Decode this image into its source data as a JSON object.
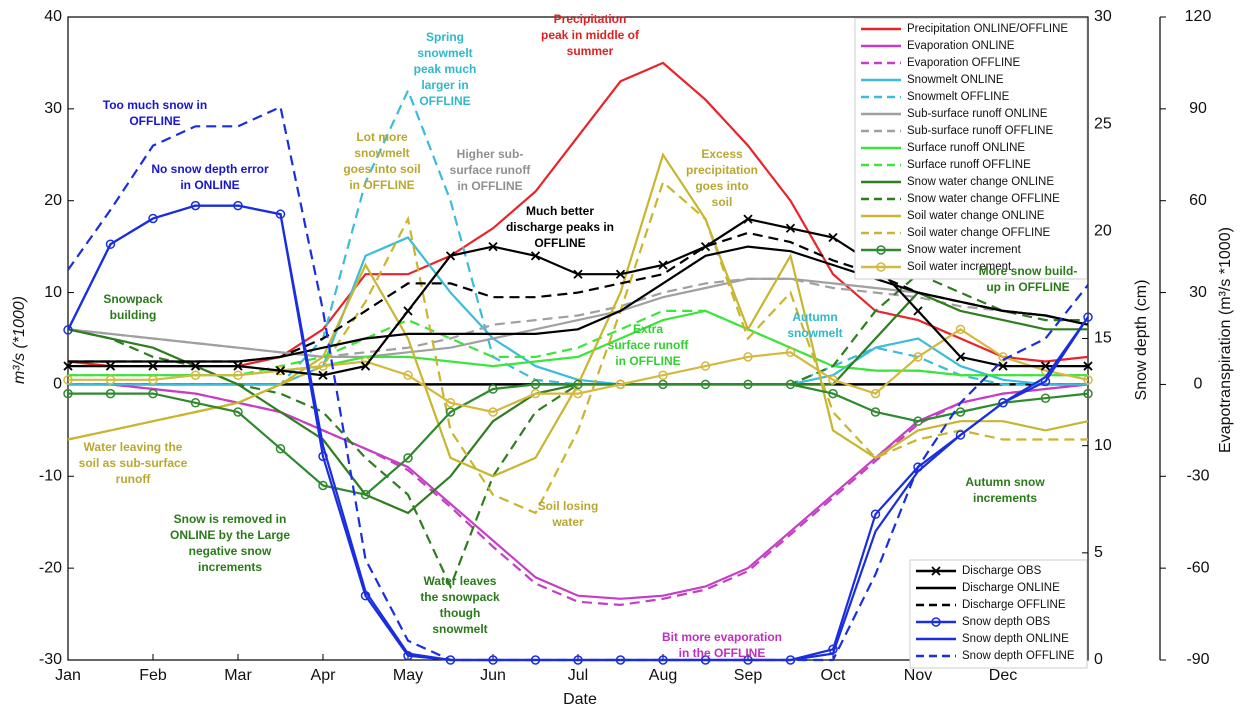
{
  "chart_data": {
    "type": "line",
    "x_label": "Date",
    "y_label": "m³/s (*1000)",
    "y2_label": "Snow depth (cm)",
    "y3_label": "Evapotranspiration (m³/s *1000)",
    "categories": [
      "Jan",
      null,
      "Feb",
      null,
      "Mar",
      null,
      "Apr",
      null,
      "May",
      null,
      "Jun",
      null,
      "Jul",
      null,
      "Aug",
      null,
      "Sep",
      null,
      "Oct",
      null,
      "Nov",
      null,
      "Dec",
      null,
      null
    ],
    "ylim": [
      -30,
      40
    ],
    "yticks": [
      -30,
      -20,
      -10,
      0,
      10,
      20,
      30,
      40
    ],
    "y2lim": [
      0,
      30
    ],
    "y2ticks": [
      0,
      5,
      10,
      15,
      20,
      25,
      30
    ],
    "y3lim": [
      -90,
      120
    ],
    "y3ticks": [
      -90,
      -60,
      -30,
      0,
      30,
      60,
      90,
      120
    ],
    "zero_line": true,
    "series": [
      {
        "name": "Precipitation ONLINE/OFFLINE",
        "color": "#e8232a",
        "dash": false,
        "legend": "upper right",
        "values": [
          2.5,
          2,
          2,
          2,
          2,
          3,
          6,
          12,
          12,
          14,
          17,
          21,
          27,
          33,
          35,
          31,
          26,
          20,
          12,
          8,
          7,
          5,
          3,
          2.5,
          3
        ]
      },
      {
        "name": "Evaporation ONLINE",
        "color": "#c53ec5",
        "dash": false,
        "axis": "y3",
        "legend": "upper right",
        "values": [
          0,
          0,
          -1.5,
          -3,
          -6,
          -9,
          -15,
          -21,
          -27,
          -39,
          -51,
          -63,
          -69,
          -70,
          -69,
          -66,
          -60,
          -48,
          -36,
          -24,
          -12,
          -6,
          -3,
          -1.5,
          0
        ]
      },
      {
        "name": "Evaporation OFFLINE",
        "color": "#c53ec5",
        "dash": true,
        "axis": "y3",
        "legend": "upper right",
        "values": [
          0,
          0,
          -1.5,
          -3,
          -6,
          -9,
          -15,
          -21,
          -28,
          -40,
          -53,
          -65,
          -71,
          -72,
          -70,
          -67,
          -61,
          -49,
          -37,
          -25,
          -13,
          -6,
          -3,
          -1.5,
          0
        ]
      },
      {
        "name": "Snowmelt ONLINE",
        "color": "#3bbcd8",
        "dash": false,
        "legend": "upper right",
        "values": [
          0,
          0,
          0,
          0,
          0,
          0,
          2,
          14,
          16,
          10,
          5,
          2,
          0.5,
          0,
          0,
          0,
          0,
          0,
          1,
          4,
          5,
          2,
          0.5,
          0,
          0
        ]
      },
      {
        "name": "Snowmelt OFFLINE",
        "color": "#3bbcd8",
        "dash": true,
        "legend": "upper right",
        "values": [
          0,
          0,
          0,
          0,
          0,
          0,
          5,
          22,
          32,
          20,
          3,
          0.5,
          0,
          0,
          0,
          0,
          0,
          0,
          2,
          4,
          3,
          1,
          0,
          0,
          0
        ]
      },
      {
        "name": "Sub-surface runoff ONLINE",
        "color": "#a0a0a0",
        "dash": false,
        "legend": "upper right",
        "values": [
          6,
          5.5,
          5,
          4.5,
          4,
          3.5,
          3,
          3,
          3.5,
          4,
          5,
          6,
          7,
          8,
          9.5,
          10.5,
          11.5,
          11.5,
          11,
          10.5,
          10,
          9,
          8,
          7.5,
          6.5
        ]
      },
      {
        "name": "Sub-surface runoff OFFLINE",
        "color": "#a0a0a0",
        "dash": true,
        "legend": "upper right",
        "values": [
          6,
          5.5,
          5,
          4.5,
          4,
          3.5,
          3,
          3.5,
          4,
          5,
          6.5,
          7,
          7.5,
          8.5,
          10,
          11,
          11.5,
          11.5,
          10.5,
          10,
          9.5,
          8.5,
          8,
          7.5,
          6.5
        ]
      },
      {
        "name": "Surface runoff ONLINE",
        "color": "#3ee43e",
        "dash": false,
        "legend": "upper right",
        "values": [
          1,
          1,
          1,
          1,
          1,
          1.5,
          2,
          3,
          3,
          2.5,
          2,
          2.5,
          3,
          5,
          7,
          8,
          6,
          4,
          2,
          1.5,
          1.5,
          1,
          1,
          1,
          1
        ]
      },
      {
        "name": "Surface runoff OFFLINE",
        "color": "#3ee43e",
        "dash": true,
        "legend": "upper right",
        "values": [
          1,
          1,
          1,
          1,
          1,
          2,
          3,
          5,
          7,
          5,
          3,
          3,
          4,
          6,
          8,
          8,
          6,
          4,
          2,
          1.5,
          1.5,
          1,
          1,
          1,
          1
        ]
      },
      {
        "name": "Snow water change ONLINE",
        "color": "#2e7d1e",
        "dash": false,
        "legend": "upper right",
        "values": [
          6,
          5,
          4,
          2,
          0,
          -3,
          -6,
          -12,
          -14,
          -10,
          -4,
          -1,
          0,
          0,
          0,
          0,
          0,
          0,
          0,
          5,
          10,
          8,
          7,
          6,
          6
        ]
      },
      {
        "name": "Snow water change OFFLINE",
        "color": "#2e7d1e",
        "dash": true,
        "legend": "upper right",
        "values": [
          6,
          5,
          3,
          2,
          0,
          -1,
          -3,
          -8,
          -12,
          -22,
          -10,
          -3,
          0,
          0,
          0,
          0,
          0,
          0,
          2,
          8,
          12,
          10,
          8,
          7,
          7
        ]
      },
      {
        "name": "Soil water change ONLINE",
        "color": "#c8b530",
        "dash": false,
        "legend": "upper right",
        "values": [
          -6,
          -5,
          -4,
          -3,
          -2,
          0,
          3,
          13,
          5,
          -8,
          -10,
          -8,
          0,
          10,
          25,
          18,
          6,
          14,
          -5,
          -8,
          -5,
          -4,
          -4,
          -5,
          -4
        ]
      },
      {
        "name": "Soil water change OFFLINE",
        "color": "#c8b530",
        "dash": true,
        "legend": "upper right",
        "values": [
          -6,
          -5,
          -4,
          -3,
          -2,
          0,
          2,
          9,
          18,
          -5,
          -12,
          -14,
          -5,
          8,
          22,
          18,
          5,
          10,
          -3,
          -8,
          -6,
          -5,
          -6,
          -6,
          -6
        ]
      },
      {
        "name": "Snow water increment",
        "color": "#2e8a2e",
        "dash": false,
        "marker": "o",
        "legend": "upper right",
        "values": [
          -1,
          -1,
          -1,
          -2,
          -3,
          -7,
          -11,
          -12,
          -8,
          -3,
          -0.5,
          0,
          0,
          0,
          0,
          0,
          0,
          0,
          -1,
          -3,
          -4,
          -3,
          -2,
          -1.5,
          -1
        ]
      },
      {
        "name": "Soil water increment",
        "color": "#d4b840",
        "dash": false,
        "marker": "o",
        "legend": "upper right",
        "values": [
          0.5,
          0.5,
          0.5,
          1,
          1,
          1.5,
          2,
          2.5,
          1,
          -2,
          -3,
          -1,
          -1,
          0,
          1,
          2,
          3,
          3.5,
          0.5,
          -1,
          3,
          6,
          3,
          1.5,
          0.5
        ]
      },
      {
        "name": "Discharge OBS",
        "color": "#000000",
        "dash": false,
        "marker": "x",
        "legend": "lower right",
        "values": [
          2,
          2,
          2,
          2,
          2,
          1.5,
          1,
          2,
          8,
          14,
          15,
          14,
          12,
          12,
          13,
          15,
          18,
          17,
          16,
          13,
          8,
          3,
          2,
          2,
          2
        ]
      },
      {
        "name": "Discharge ONLINE",
        "color": "#000000",
        "dash": false,
        "legend": "lower right",
        "values": [
          2.5,
          2.5,
          2.5,
          2.5,
          2.5,
          3,
          4,
          5,
          5.5,
          5.5,
          5.5,
          5.5,
          6,
          8,
          11,
          14,
          15,
          14.5,
          13,
          11.5,
          10,
          9,
          8,
          7.5,
          6.5
        ]
      },
      {
        "name": "Discharge OFFLINE",
        "color": "#000000",
        "dash": true,
        "legend": "lower right",
        "values": [
          2.5,
          2.5,
          2.5,
          2.5,
          2.5,
          3,
          5,
          8,
          11,
          11,
          9.5,
          9.5,
          10,
          11,
          12,
          15,
          16.5,
          15.5,
          13.5,
          12,
          10,
          9,
          8,
          7.5,
          6.5
        ]
      },
      {
        "name": "Snow depth OBS",
        "color": "#1a2ee0",
        "dash": false,
        "marker": "o",
        "axis": "y2",
        "legend": "lower right",
        "values": [
          15.4,
          19.4,
          20.6,
          21.2,
          21.2,
          20.8,
          9.5,
          3,
          0.2,
          0,
          0,
          0,
          0,
          0,
          0,
          0,
          0,
          0,
          0.5,
          6.8,
          9,
          10.5,
          12,
          13,
          16
        ]
      },
      {
        "name": "Snow depth ONLINE",
        "color": "#1a2ee0",
        "dash": false,
        "axis": "y2",
        "legend": "lower right",
        "values": [
          15.4,
          19.4,
          20.6,
          21.2,
          21.2,
          20.8,
          10,
          3.2,
          0.3,
          0,
          0,
          0,
          0,
          0,
          0,
          0,
          0,
          0,
          0.3,
          6,
          8.8,
          10.5,
          12,
          13.2,
          16
        ]
      },
      {
        "name": "Snow depth OFFLINE",
        "color": "#1a2ee0",
        "dash": true,
        "axis": "y2",
        "legend": "lower right",
        "values": [
          18.2,
          21,
          24,
          24.9,
          24.9,
          25.8,
          16.3,
          4.7,
          0.9,
          0,
          0,
          0,
          0,
          0,
          0,
          0,
          0,
          0,
          0,
          4,
          9,
          12,
          14,
          15,
          17.5
        ]
      }
    ],
    "annotations": [
      {
        "lines": [
          "Too much snow in",
          "OFFLINE"
        ],
        "color": "#1515d0"
      },
      {
        "lines": [
          "No snow depth error",
          "in ONLINE"
        ],
        "color": "#1515d0"
      },
      {
        "lines": [
          "Snowpack",
          "building"
        ],
        "color": "#2a7a1a"
      },
      {
        "lines": [
          "Spring",
          "snowmelt",
          "peak much",
          "larger in",
          "OFFLINE"
        ],
        "color": "#30b8c8"
      },
      {
        "lines": [
          "Precipitation",
          "peak in middle of",
          "summer"
        ],
        "color": "#e02020"
      },
      {
        "lines": [
          "Lot more",
          "snowmelt",
          "goes into soil",
          "in OFFLINE"
        ],
        "color": "#b8a830"
      },
      {
        "lines": [
          "Higher sub-",
          "surface runoff",
          "in OFFLINE"
        ],
        "color": "#909090"
      },
      {
        "lines": [
          "Much better",
          "discharge peaks in",
          "OFFLINE"
        ],
        "color": "#000000"
      },
      {
        "lines": [
          "Excess",
          "precipitation",
          "goes into",
          "soil"
        ],
        "color": "#b8a830"
      },
      {
        "lines": [
          "More snow build-",
          "up in OFFLINE"
        ],
        "color": "#2a7a1a"
      },
      {
        "lines": [
          "Autumn",
          "snowmelt"
        ],
        "color": "#30b8c8"
      },
      {
        "lines": [
          "Extra",
          "surface runoff",
          "in OFFLINE"
        ],
        "color": "#30d030"
      },
      {
        "lines": [
          "Water leaving the",
          "soil as sub-surface",
          "runoff"
        ],
        "color": "#b8a830"
      },
      {
        "lines": [
          "Soil losing",
          "water"
        ],
        "color": "#b8a830"
      },
      {
        "lines": [
          "Autumn snow",
          "increments"
        ],
        "color": "#2a7a1a"
      },
      {
        "lines": [
          "Snow is removed in",
          "ONLINE by the Large",
          "negative snow",
          "increments"
        ],
        "color": "#2a7a1a"
      },
      {
        "lines": [
          "Water leaves",
          "the snowpack",
          "though",
          "snowmelt"
        ],
        "color": "#2a7a1a"
      },
      {
        "lines": [
          "Bit more evaporation",
          "in the OFFLINE"
        ],
        "color": "#c030c0"
      }
    ]
  }
}
